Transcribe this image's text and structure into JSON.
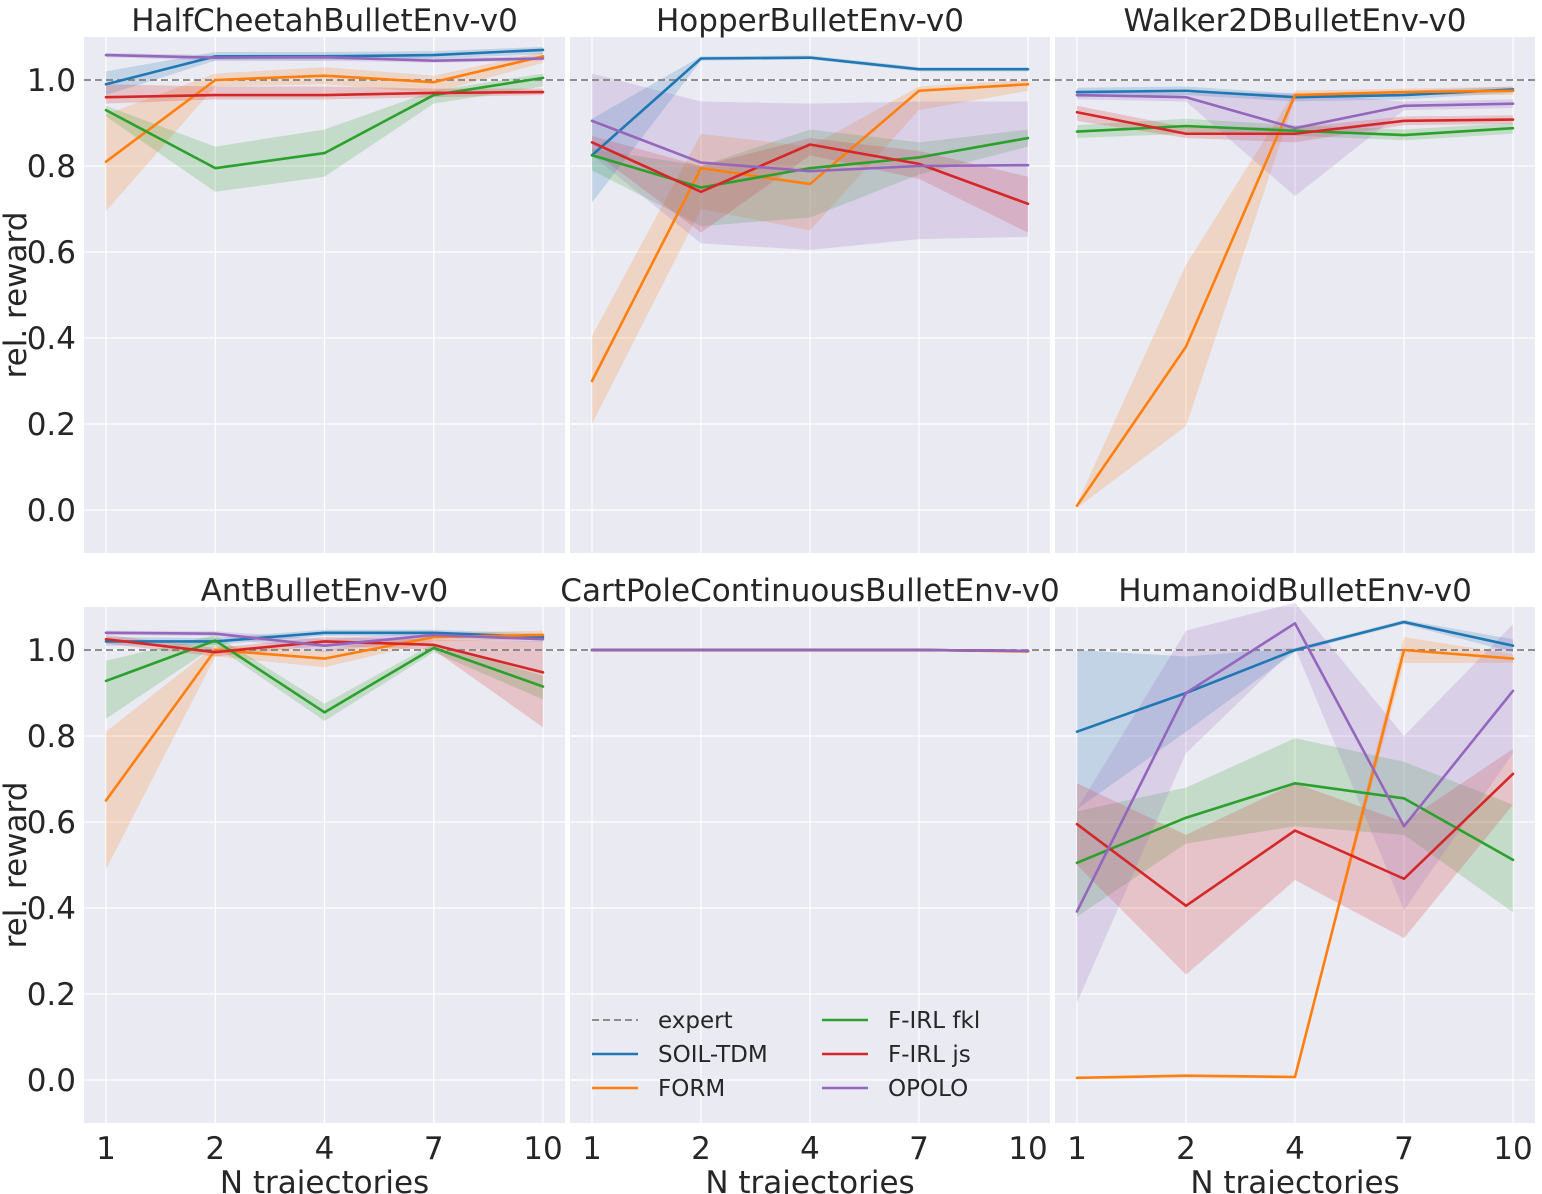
{
  "chart_data": {
    "type": "line",
    "x_categories": [
      "1",
      "2",
      "4",
      "7",
      "10"
    ],
    "xlabel": "N trajectories",
    "ylabel": "rel. reward",
    "ylim": [
      -0.1,
      1.1
    ],
    "yticks": [
      "0.0",
      "0.2",
      "0.4",
      "0.6",
      "0.8",
      "1.0"
    ],
    "ytick_values": [
      0.0,
      0.2,
      0.4,
      0.6,
      0.8,
      1.0
    ],
    "expert_level": 1.0,
    "colors": {
      "SOIL-TDM": "#1f77b4",
      "FORM": "#ff7f0e",
      "F-IRL fkl": "#2ca02c",
      "F-IRL js": "#d62728",
      "OPOLO": "#9467bd",
      "expert": "#808080",
      "background": "#eaeaf2"
    },
    "legend": {
      "placement": "lower-left of center-bottom panel",
      "entries": [
        "expert",
        "SOIL-TDM",
        "FORM",
        "F-IRL fkl",
        "F-IRL js",
        "OPOLO"
      ]
    },
    "panels": [
      {
        "title": "HalfCheetahBulletEnv-v0",
        "series": [
          {
            "name": "SOIL-TDM",
            "values": [
              0.99,
              1.055,
              1.055,
              1.058,
              1.07
            ],
            "lower": [
              0.965,
              1.045,
              1.045,
              1.05,
              1.06
            ],
            "upper": [
              1.02,
              1.065,
              1.065,
              1.067,
              1.077
            ]
          },
          {
            "name": "FORM",
            "values": [
              0.81,
              1.0,
              1.01,
              0.995,
              1.055
            ],
            "lower": [
              0.695,
              0.985,
              0.99,
              0.97,
              1.04
            ],
            "upper": [
              0.92,
              1.015,
              1.03,
              1.01,
              1.065
            ]
          },
          {
            "name": "F-IRL fkl",
            "values": [
              0.93,
              0.795,
              0.83,
              0.965,
              1.005
            ],
            "lower": [
              0.915,
              0.74,
              0.775,
              0.945,
              0.985
            ],
            "upper": [
              0.94,
              0.845,
              0.885,
              0.975,
              1.015
            ]
          },
          {
            "name": "F-IRL js",
            "values": [
              0.96,
              0.965,
              0.965,
              0.97,
              0.972
            ],
            "lower": [
              0.945,
              0.955,
              0.955,
              0.96,
              0.965
            ],
            "upper": [
              0.99,
              0.985,
              0.985,
              0.98,
              0.98
            ]
          },
          {
            "name": "OPOLO",
            "values": [
              1.058,
              1.052,
              1.053,
              1.045,
              1.05
            ],
            "lower": [
              1.053,
              1.045,
              1.045,
              1.04,
              1.045
            ],
            "upper": [
              1.063,
              1.058,
              1.06,
              1.052,
              1.055
            ]
          }
        ]
      },
      {
        "title": "HopperBulletEnv-v0",
        "series": [
          {
            "name": "SOIL-TDM",
            "values": [
              0.825,
              1.05,
              1.052,
              1.025,
              1.025
            ],
            "lower": [
              0.715,
              1.045,
              1.048,
              1.02,
              1.02
            ],
            "upper": [
              0.91,
              1.055,
              1.057,
              1.03,
              1.03
            ]
          },
          {
            "name": "FORM",
            "values": [
              0.3,
              0.795,
              0.758,
              0.975,
              0.99
            ],
            "lower": [
              0.2,
              0.7,
              0.65,
              0.93,
              0.975
            ],
            "upper": [
              0.405,
              0.875,
              0.845,
              0.985,
              1.0
            ]
          },
          {
            "name": "F-IRL fkl",
            "values": [
              0.825,
              0.75,
              0.795,
              0.82,
              0.865
            ],
            "lower": [
              0.79,
              0.66,
              0.68,
              0.78,
              0.845
            ],
            "upper": [
              0.84,
              0.8,
              0.885,
              0.855,
              0.885
            ]
          },
          {
            "name": "F-IRL js",
            "values": [
              0.855,
              0.74,
              0.85,
              0.805,
              0.712
            ],
            "lower": [
              0.835,
              0.645,
              0.825,
              0.77,
              0.645
            ],
            "upper": [
              0.87,
              0.8,
              0.865,
              0.835,
              0.775
            ]
          },
          {
            "name": "OPOLO",
            "values": [
              0.905,
              0.808,
              0.788,
              0.8,
              0.802
            ],
            "lower": [
              0.825,
              0.62,
              0.605,
              0.63,
              0.635
            ],
            "upper": [
              1.015,
              0.95,
              0.945,
              0.95,
              0.95
            ]
          }
        ]
      },
      {
        "title": "Walker2DBulletEnv-v0",
        "series": [
          {
            "name": "SOIL-TDM",
            "values": [
              0.972,
              0.975,
              0.96,
              0.965,
              0.978
            ],
            "lower": [
              0.96,
              0.965,
              0.95,
              0.955,
              0.97
            ],
            "upper": [
              0.982,
              0.985,
              0.968,
              0.975,
              0.985
            ]
          },
          {
            "name": "FORM",
            "values": [
              0.01,
              0.38,
              0.965,
              0.972,
              0.975
            ],
            "lower": [
              0.005,
              0.195,
              0.955,
              0.965,
              0.965
            ],
            "upper": [
              0.015,
              0.57,
              0.975,
              0.98,
              0.985
            ]
          },
          {
            "name": "F-IRL fkl",
            "values": [
              0.88,
              0.893,
              0.882,
              0.872,
              0.888
            ],
            "lower": [
              0.865,
              0.875,
              0.87,
              0.86,
              0.875
            ],
            "upper": [
              0.895,
              0.91,
              0.895,
              0.885,
              0.9
            ]
          },
          {
            "name": "F-IRL js",
            "values": [
              0.925,
              0.875,
              0.875,
              0.905,
              0.908
            ],
            "lower": [
              0.905,
              0.865,
              0.855,
              0.895,
              0.898
            ],
            "upper": [
              0.94,
              0.89,
              0.89,
              0.915,
              0.918
            ]
          },
          {
            "name": "OPOLO",
            "values": [
              0.965,
              0.96,
              0.888,
              0.94,
              0.945
            ],
            "lower": [
              0.955,
              0.95,
              0.73,
              0.93,
              0.935
            ],
            "upper": [
              0.975,
              0.97,
              0.97,
              0.95,
              0.955
            ]
          }
        ]
      },
      {
        "title": "AntBulletEnv-v0",
        "series": [
          {
            "name": "SOIL-TDM",
            "values": [
              1.02,
              1.02,
              1.04,
              1.04,
              1.03
            ],
            "lower": [
              1.01,
              1.012,
              1.033,
              1.033,
              1.022
            ],
            "upper": [
              1.03,
              1.028,
              1.047,
              1.047,
              1.038
            ]
          },
          {
            "name": "FORM",
            "values": [
              0.65,
              1.0,
              0.98,
              1.03,
              1.035
            ],
            "lower": [
              0.49,
              0.985,
              0.96,
              1.02,
              1.025
            ],
            "upper": [
              0.81,
              1.01,
              1.0,
              1.04,
              1.045
            ]
          },
          {
            "name": "F-IRL fkl",
            "values": [
              0.928,
              1.022,
              0.855,
              1.005,
              0.915
            ],
            "lower": [
              0.84,
              1.01,
              0.835,
              0.995,
              0.885
            ],
            "upper": [
              0.975,
              1.035,
              0.875,
              1.015,
              0.94
            ]
          },
          {
            "name": "F-IRL js",
            "values": [
              1.025,
              0.995,
              1.02,
              1.012,
              0.948
            ],
            "lower": [
              1.015,
              0.985,
              1.01,
              1.0,
              0.82
            ],
            "upper": [
              1.035,
              1.005,
              1.03,
              1.025,
              1.02
            ]
          },
          {
            "name": "OPOLO",
            "values": [
              1.04,
              1.038,
              1.01,
              1.035,
              1.025
            ],
            "lower": [
              1.035,
              1.032,
              0.995,
              1.028,
              1.018
            ],
            "upper": [
              1.045,
              1.044,
              1.025,
              1.042,
              1.032
            ]
          }
        ]
      },
      {
        "title": "CartPoleContinuousBulletEnv-v0",
        "series": [
          {
            "name": "SOIL-TDM",
            "values": [
              1.0,
              1.0,
              1.0,
              1.0,
              0.998
            ],
            "lower": [
              0.998,
              0.998,
              0.998,
              0.998,
              0.994
            ],
            "upper": [
              1.002,
              1.002,
              1.002,
              1.002,
              1.0
            ]
          },
          {
            "name": "FORM",
            "values": [
              1.0,
              1.0,
              1.0,
              1.0,
              0.997
            ],
            "lower": [
              0.998,
              0.998,
              0.998,
              0.998,
              0.993
            ],
            "upper": [
              1.002,
              1.002,
              1.002,
              1.002,
              1.0
            ]
          },
          {
            "name": "F-IRL fkl",
            "values": [
              1.0,
              1.0,
              1.0,
              1.0,
              0.998
            ],
            "lower": [
              0.998,
              0.998,
              0.998,
              0.998,
              0.994
            ],
            "upper": [
              1.002,
              1.002,
              1.002,
              1.002,
              1.0
            ]
          },
          {
            "name": "F-IRL js",
            "values": [
              1.0,
              1.0,
              1.0,
              1.0,
              0.998
            ],
            "lower": [
              0.998,
              0.998,
              0.998,
              0.998,
              0.994
            ],
            "upper": [
              1.002,
              1.002,
              1.002,
              1.002,
              1.0
            ]
          },
          {
            "name": "OPOLO",
            "values": [
              1.0,
              1.0,
              1.0,
              1.0,
              0.998
            ],
            "lower": [
              0.998,
              0.998,
              0.998,
              0.998,
              0.994
            ],
            "upper": [
              1.002,
              1.002,
              1.002,
              1.002,
              1.0
            ]
          }
        ]
      },
      {
        "title": "HumanoidBulletEnv-v0",
        "series": [
          {
            "name": "SOIL-TDM",
            "values": [
              0.81,
              0.9,
              1.0,
              1.065,
              1.01
            ],
            "lower": [
              0.63,
              0.81,
              0.995,
              1.06,
              0.995
            ],
            "upper": [
              1.0,
              0.985,
              1.005,
              1.07,
              1.025
            ]
          },
          {
            "name": "FORM",
            "values": [
              0.005,
              0.01,
              0.007,
              1.0,
              0.98
            ],
            "lower": [
              0.003,
              0.008,
              0.005,
              0.97,
              0.97
            ],
            "upper": [
              0.007,
              0.012,
              0.009,
              1.03,
              0.99
            ]
          },
          {
            "name": "F-IRL fkl",
            "values": [
              0.505,
              0.61,
              0.69,
              0.655,
              0.512
            ],
            "lower": [
              0.38,
              0.55,
              0.59,
              0.57,
              0.39
            ],
            "upper": [
              0.625,
              0.68,
              0.795,
              0.74,
              0.64
            ]
          },
          {
            "name": "F-IRL js",
            "values": [
              0.595,
              0.405,
              0.58,
              0.468,
              0.712
            ],
            "lower": [
              0.5,
              0.245,
              0.465,
              0.33,
              0.64
            ],
            "upper": [
              0.69,
              0.57,
              0.69,
              0.6,
              0.77
            ]
          },
          {
            "name": "OPOLO",
            "values": [
              0.392,
              0.9,
              1.062,
              0.59,
              0.905
            ],
            "lower": [
              0.18,
              0.76,
              1.005,
              0.395,
              0.76
            ],
            "upper": [
              0.63,
              1.045,
              1.11,
              0.8,
              1.06
            ]
          }
        ]
      }
    ]
  }
}
